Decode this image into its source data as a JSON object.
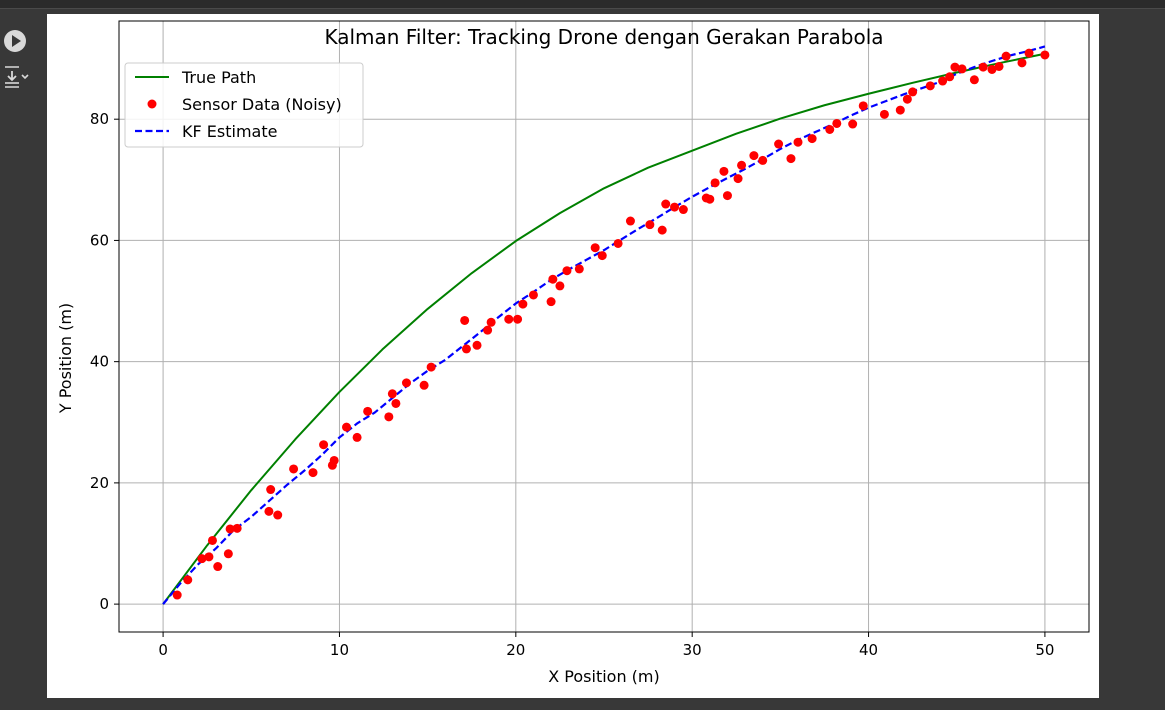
{
  "notebook": {
    "run_icon": "play-circle-icon",
    "output_icon": "output-toggle-icon"
  },
  "chart_data": {
    "type": "line",
    "title": "Kalman Filter: Tracking Drone dengan Gerakan Parabola",
    "xlabel": "X Position (m)",
    "ylabel": "Y Position (m)",
    "xlim": [
      -2.5,
      52.5
    ],
    "ylim": [
      -4.6,
      96.2
    ],
    "xticks": [
      0,
      10,
      20,
      30,
      40,
      50
    ],
    "yticks": [
      0,
      20,
      40,
      60,
      80
    ],
    "grid": true,
    "legend_position": "upper left",
    "series": [
      {
        "name": "True Path",
        "kind": "line",
        "color": "#008000",
        "dash": "solid",
        "x": [
          0,
          2.5,
          5,
          7.5,
          10,
          12.5,
          15,
          17.5,
          20,
          22.5,
          25,
          27.5,
          30,
          32.5,
          35,
          37.5,
          40,
          42.5,
          45,
          47.5,
          50
        ],
        "y": [
          0,
          9.7,
          18.8,
          27.2,
          35.0,
          42.2,
          48.7,
          54.6,
          59.9,
          64.5,
          68.6,
          72.0,
          74.8,
          77.6,
          80.1,
          82.3,
          84.2,
          86.0,
          87.7,
          89.3,
          90.8
        ]
      },
      {
        "name": "Sensor Data (Noisy)",
        "kind": "scatter",
        "color": "#ff0000",
        "x": [
          0.8,
          1.4,
          2.2,
          2.6,
          2.8,
          3.1,
          3.7,
          3.8,
          4.2,
          6.0,
          6.1,
          6.5,
          7.4,
          8.5,
          9.1,
          9.6,
          9.7,
          10.4,
          11.0,
          11.6,
          12.8,
          13.0,
          13.2,
          13.8,
          14.8,
          15.2,
          17.1,
          17.2,
          17.8,
          18.4,
          18.6,
          19.6,
          20.1,
          20.4,
          21.0,
          22.0,
          22.1,
          22.5,
          22.9,
          23.6,
          24.5,
          24.9,
          25.8,
          26.5,
          27.6,
          28.3,
          28.5,
          29.0,
          29.5,
          30.8,
          31.0,
          31.3,
          31.8,
          32.0,
          32.6,
          32.8,
          33.5,
          34.0,
          34.9,
          35.6,
          36.0,
          36.8,
          37.8,
          38.2,
          39.1,
          39.7,
          40.9,
          41.8,
          42.2,
          42.5,
          43.5,
          44.2,
          44.6,
          44.9,
          45.3,
          46.0,
          46.5,
          47.0,
          47.4,
          47.8,
          48.7,
          49.1,
          50.0
        ],
        "y": [
          1.5,
          4.0,
          7.5,
          7.8,
          10.5,
          6.2,
          8.3,
          12.4,
          12.5,
          15.3,
          18.9,
          14.7,
          22.3,
          21.7,
          26.3,
          22.9,
          23.7,
          29.2,
          27.5,
          31.8,
          30.9,
          34.7,
          33.1,
          36.5,
          36.1,
          39.1,
          46.8,
          42.1,
          42.7,
          45.2,
          46.5,
          47.0,
          47.0,
          49.5,
          51.0,
          49.9,
          53.6,
          52.5,
          55.0,
          55.3,
          58.8,
          57.5,
          59.5,
          63.2,
          62.6,
          61.7,
          66.0,
          65.5,
          65.1,
          67.0,
          66.8,
          69.5,
          71.4,
          67.4,
          70.2,
          72.4,
          74.0,
          73.2,
          75.9,
          73.5,
          76.2,
          76.8,
          78.3,
          79.3,
          79.2,
          82.2,
          80.8,
          81.5,
          83.3,
          84.5,
          85.5,
          86.3,
          87.0,
          88.6,
          88.3,
          86.5,
          88.6,
          88.2,
          88.7,
          90.4,
          89.3,
          90.9,
          90.6
        ]
      },
      {
        "name": "KF Estimate",
        "kind": "line",
        "color": "#0000ff",
        "dash": "dashed",
        "x": [
          0,
          1,
          2,
          3,
          4,
          5,
          6,
          7,
          8,
          9,
          10,
          11,
          12,
          13,
          14,
          15,
          16,
          17,
          18,
          19,
          20,
          21,
          22,
          23,
          24,
          25,
          26,
          27,
          28,
          29,
          30,
          31,
          32,
          33,
          34,
          35,
          36,
          37,
          38,
          39,
          40,
          41,
          42,
          43,
          44,
          45,
          46,
          47,
          48,
          49,
          50
        ],
        "y": [
          0,
          3.5,
          6.6,
          9.2,
          12.2,
          14.4,
          17.0,
          19.6,
          22.0,
          24.6,
          27.5,
          29.8,
          31.6,
          34.0,
          36.4,
          38.5,
          40.3,
          42.6,
          44.9,
          47.3,
          49.6,
          51.5,
          53.5,
          55.2,
          56.8,
          58.4,
          60.2,
          62.0,
          63.7,
          65.5,
          67.2,
          68.8,
          70.3,
          71.8,
          73.4,
          75.1,
          76.6,
          77.9,
          79.2,
          80.6,
          81.9,
          83.0,
          84.1,
          85.1,
          86.1,
          87.5,
          88.6,
          89.6,
          90.5,
          91.2,
          92.0
        ]
      }
    ]
  }
}
